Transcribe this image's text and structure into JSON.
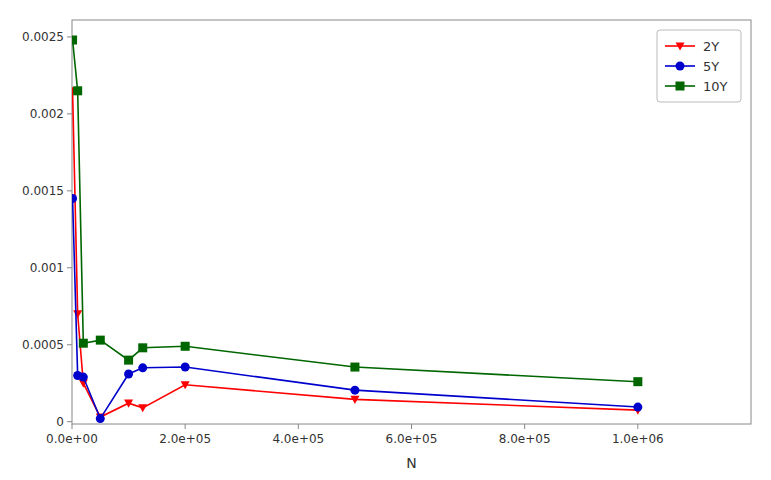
{
  "chart_data": {
    "type": "line",
    "xlabel": "N",
    "x": [
      1000,
      10000,
      20000,
      50000,
      100000,
      125000,
      200000,
      500000,
      1000000
    ],
    "series": [
      {
        "name": "2Y",
        "color": "#ff0000",
        "marker": "triangle-down",
        "values": [
          0.00215,
          0.0007,
          0.00025,
          3e-05,
          0.00012,
          9e-05,
          0.00024,
          0.000145,
          7.5e-05
        ]
      },
      {
        "name": "5Y",
        "color": "#0000cc",
        "marker": "circle",
        "values": [
          0.00145,
          0.0003,
          0.00029,
          2e-05,
          0.00031,
          0.00035,
          0.000355,
          0.000205,
          9.5e-05
        ]
      },
      {
        "name": "10Y",
        "color": "#006600",
        "marker": "square",
        "values": [
          0.00248,
          0.00215,
          0.00051,
          0.00053,
          0.0004,
          0.00048,
          0.00049,
          0.000355,
          0.00026
        ]
      }
    ],
    "xlim": [
      0,
      1200000
    ],
    "ylim": [
      -1.5e-05,
      0.00261
    ],
    "xticks": [
      {
        "value": 0,
        "label": "0.0e+00"
      },
      {
        "value": 200000,
        "label": "2.0e+05"
      },
      {
        "value": 400000,
        "label": "4.0e+05"
      },
      {
        "value": 600000,
        "label": "6.0e+05"
      },
      {
        "value": 800000,
        "label": "8.0e+05"
      },
      {
        "value": 1000000,
        "label": "1.0e+06"
      }
    ],
    "yticks": [
      0,
      0.0005,
      0.001,
      0.0015,
      0.002,
      0.0025
    ],
    "grid": false,
    "legend": "upper right"
  }
}
